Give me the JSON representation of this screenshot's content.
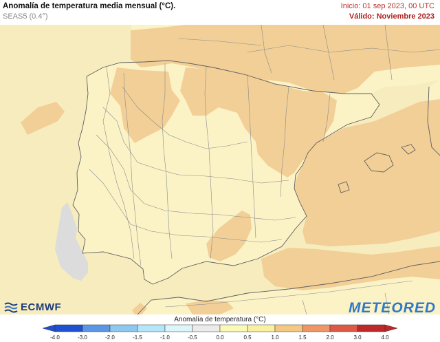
{
  "header": {
    "title": "Anomalía de temperatura media mensual (°C).",
    "subtitle": "SEAS5 (0.4°)",
    "init": "Inicio: 01 sep 2023, 00 UTC",
    "valid": "Válido: Noviembre 2023"
  },
  "logos": {
    "left": "ECMWF",
    "right": "METEORED"
  },
  "colorbar": {
    "label": "Anomalía de temperatura (°C)",
    "ticks": [
      "-4.0",
      "-3.0",
      "-2.0",
      "-1.5",
      "-1.0",
      "-0.5",
      "0.0",
      "0.5",
      "1.0",
      "1.5",
      "2.0",
      "3.0",
      "4.0"
    ],
    "colors": [
      "#1e50d2",
      "#5a96e6",
      "#8cc8f0",
      "#b4e6fa",
      "#dcf5fa",
      "#ebebeb",
      "#fafab4",
      "#faf0a0",
      "#f5c882",
      "#f09664",
      "#dc5a46",
      "#be2828"
    ]
  },
  "map": {
    "colors": {
      "sea": "#f6ecbe",
      "land": "#fbf3c6",
      "warm": "#f2cf96",
      "neutral": "#dcdcdc",
      "border": "#8a8a8a",
      "coast": "#5e5e5e"
    }
  }
}
